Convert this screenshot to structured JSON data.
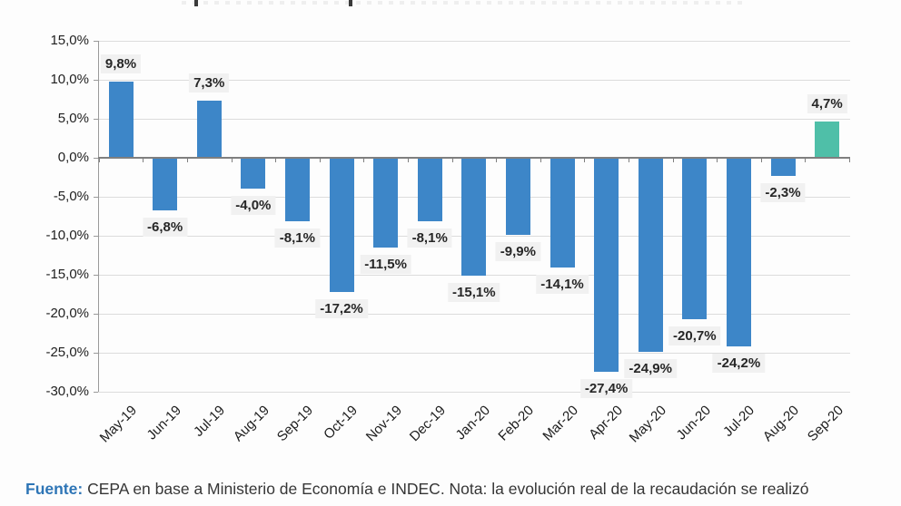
{
  "chart_data": {
    "type": "bar",
    "title": "",
    "title_note": "title cropped at top of image - only letter descenders visible",
    "categories": [
      "May-19",
      "Jun-19",
      "Jul-19",
      "Aug-19",
      "Sep-19",
      "Oct-19",
      "Nov-19",
      "Dec-19",
      "Jan-20",
      "Feb-20",
      "Mar-20",
      "Apr-20",
      "May-20",
      "Jun-20",
      "Jul-20",
      "Aug-20",
      "Sep-20"
    ],
    "values": [
      9.8,
      -6.8,
      7.3,
      -4.0,
      -8.1,
      -17.2,
      -11.5,
      -8.1,
      -15.1,
      -9.9,
      -14.1,
      -27.4,
      -24.9,
      -20.7,
      -24.2,
      -2.3,
      4.7
    ],
    "value_labels": [
      "9,8%",
      "-6,8%",
      "7,3%",
      "-4,0%",
      "-8,1%",
      "-17,2%",
      "-11,5%",
      "-8,1%",
      "-15,1%",
      "-9,9%",
      "-14,1%",
      "-27,4%",
      "-24,9%",
      "-20,7%",
      "-24,2%",
      "-2,3%",
      "4,7%"
    ],
    "y_ticks": [
      "15,0%",
      "10,0%",
      "5,0%",
      "0,0%",
      "-5,0%",
      "-10,0%",
      "-15,0%",
      "-20,0%",
      "-25,0%",
      "-30,0%"
    ],
    "y_tick_values": [
      15,
      10,
      5,
      0,
      -5,
      -10,
      -15,
      -20,
      -25,
      -30
    ],
    "ylim": [
      -30,
      15
    ],
    "xlabel": "",
    "ylabel": "",
    "grid": true,
    "legend": false,
    "bar_color": "#3d86c8",
    "highlight_color": "#4fbfa8",
    "highlight_index": 16,
    "label_box_color": "#f1f1f1",
    "gridline_color": "#dcdcdc",
    "axis_color": "#7f7f7f"
  },
  "footer": {
    "source_label": "Fuente:",
    "text": " CEPA en base a Ministerio de Economía e INDEC. Nota: la evolución real de la recaudación se realizó"
  }
}
